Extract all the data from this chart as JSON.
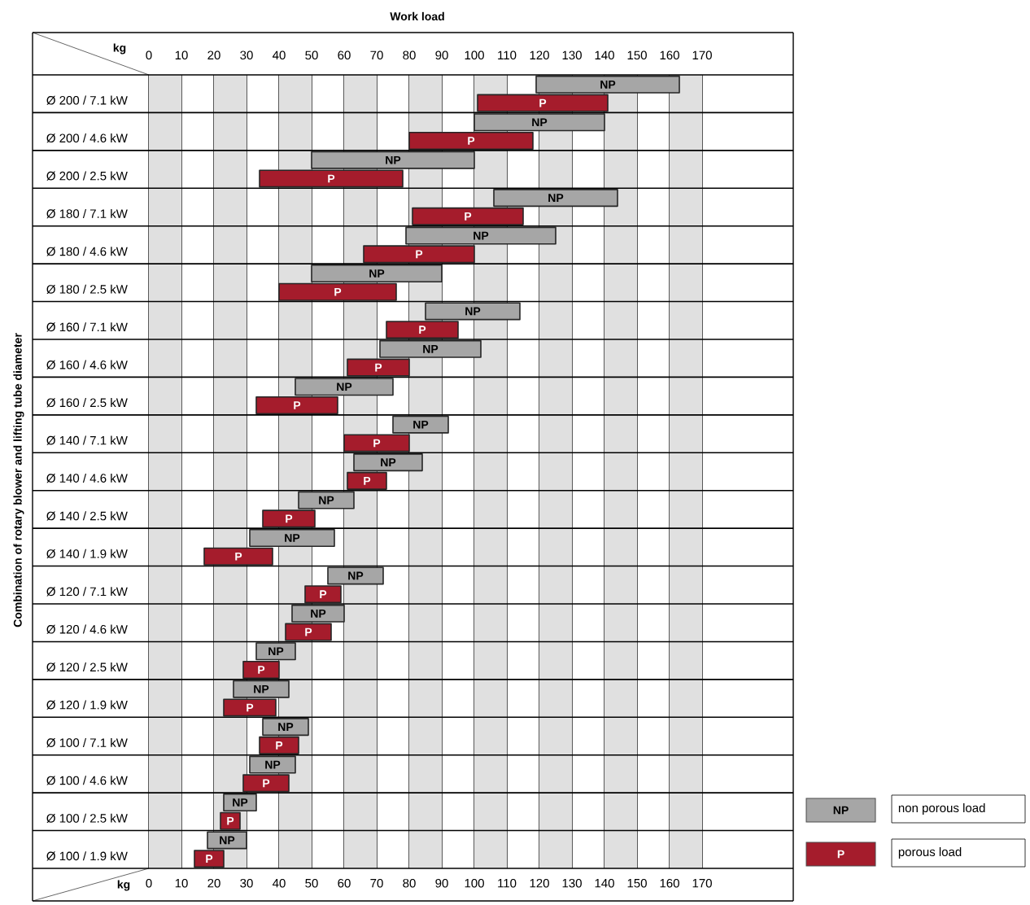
{
  "chart_data": {
    "type": "bar",
    "orientation": "horizontal",
    "title": "Work load",
    "xlabel": "kg",
    "x2label": "kg",
    "ylabel": "Combination of rotary blower and lifting tube diameter",
    "categories": [
      "Ø 200 / 7.1 kW",
      "Ø 200 / 4.6 kW",
      "Ø 200 / 2.5 kW",
      "Ø 180 / 7.1 kW",
      "Ø 180 / 4.6 kW",
      "Ø 180 / 2.5 kW",
      "Ø 160 / 7.1 kW",
      "Ø 160 / 4.6 kW",
      "Ø 160 / 2.5 kW",
      "Ø 140 / 7.1 kW",
      "Ø 140 / 4.6 kW",
      "Ø 140 / 2.5 kW",
      "Ø 140 / 1.9 kW",
      "Ø 120 / 7.1 kW",
      "Ø 120 / 4.6 kW",
      "Ø 120 / 2.5 kW",
      "Ø 120 / 1.9 kW",
      "Ø 100 / 7.1 kW",
      "Ø 100 / 4.6 kW",
      "Ø 100 / 2.5 kW",
      "Ø 100 / 1.9 kW"
    ],
    "series": [
      {
        "name": "non porous load",
        "color": "#a6a6a6",
        "base": [
          119,
          100,
          50,
          106,
          79,
          50,
          85,
          71,
          45,
          75,
          63,
          46,
          31,
          55,
          44,
          33,
          26,
          35,
          31,
          23,
          18
        ],
        "values": [
          44,
          40,
          50,
          38,
          46,
          40,
          29,
          31,
          30,
          17,
          21,
          17,
          26,
          17,
          16,
          12,
          17,
          14,
          14,
          10,
          12
        ],
        "value_labels": [
          "NP",
          "NP",
          "NP",
          "NP",
          "NP",
          "NP",
          "NP",
          "NP",
          "NP",
          "NP",
          "NP",
          "NP",
          "NP",
          "NP",
          "NP",
          "NP",
          "NP",
          "NP",
          "NP",
          "NP",
          "NP"
        ]
      },
      {
        "name": "porous load",
        "color": "#a51c2c",
        "base": [
          101,
          80,
          34,
          81,
          66,
          40,
          73,
          61,
          33,
          60,
          61,
          35,
          17,
          48,
          42,
          29,
          23,
          34,
          29,
          22,
          14
        ],
        "values": [
          40,
          38,
          44,
          34,
          34,
          36,
          22,
          19,
          25,
          20,
          12,
          16,
          21,
          11,
          14,
          11,
          16,
          12,
          14,
          6,
          9
        ],
        "value_labels": [
          "P",
          "P",
          "P",
          "P",
          "P",
          "P",
          "P",
          "P",
          "P",
          "P",
          "P",
          "P",
          "P",
          "P",
          "P",
          "P",
          "P",
          "P",
          "P",
          "P",
          "P"
        ]
      }
    ],
    "xlim": [
      0,
      198
    ],
    "xticks": [
      0,
      10,
      20,
      30,
      40,
      50,
      60,
      70,
      80,
      90,
      100,
      110,
      120,
      130,
      140,
      150,
      160,
      170
    ],
    "x2lim": [
      0,
      198
    ],
    "x2ticks": [
      0,
      10,
      20,
      30,
      40,
      50,
      60,
      70,
      80,
      90,
      100,
      110,
      120,
      130,
      140,
      150,
      160,
      170
    ],
    "bands": [
      {
        "axis": "x",
        "from": 0,
        "to": 10
      },
      {
        "axis": "x",
        "from": 20,
        "to": 30
      },
      {
        "axis": "x",
        "from": 40,
        "to": 50
      },
      {
        "axis": "x",
        "from": 60,
        "to": 70
      },
      {
        "axis": "x",
        "from": 80,
        "to": 90
      },
      {
        "axis": "x",
        "from": 100,
        "to": 110
      },
      {
        "axis": "x",
        "from": 120,
        "to": 130
      },
      {
        "axis": "x",
        "from": 140,
        "to": 150
      },
      {
        "axis": "x",
        "from": 160,
        "to": 170
      }
    ],
    "grid": true,
    "legend": "bottom right"
  }
}
